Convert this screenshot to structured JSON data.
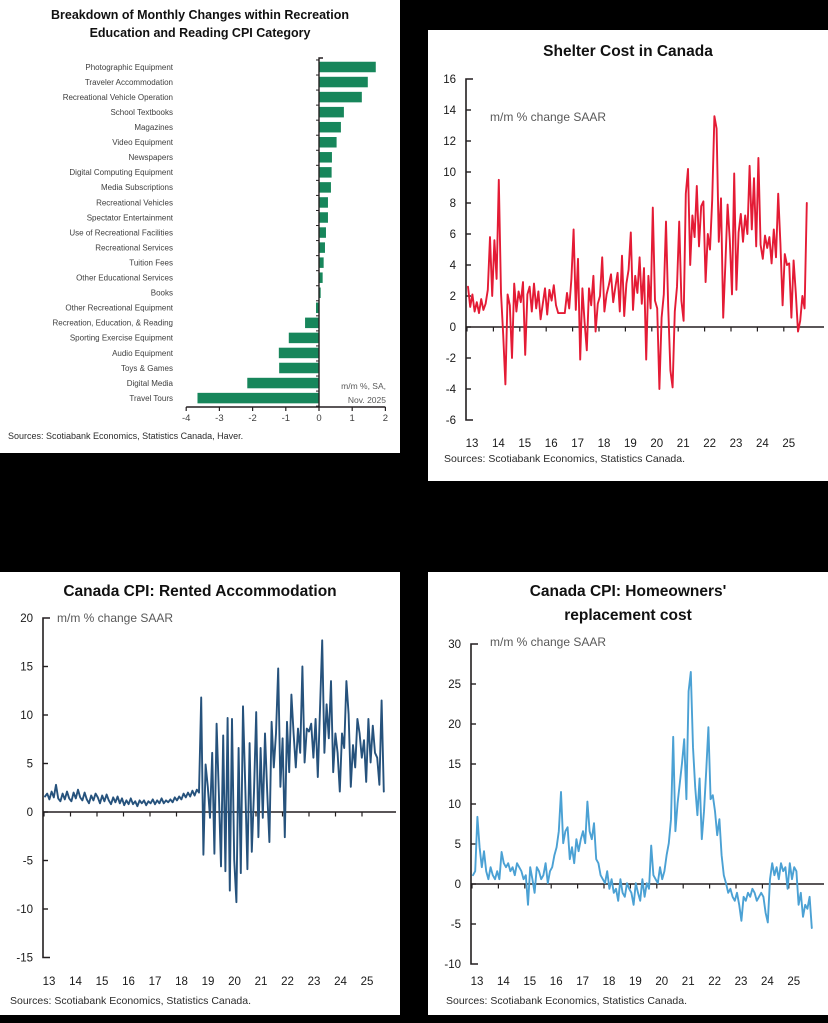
{
  "charts": [
    {
      "id": "recreation-breakdown",
      "title_line1": "Breakdown of Monthly Changes within Recreation",
      "title_line2": "Education and Reading CPI Category",
      "annotation_line1": "m/m %, SA,",
      "annotation_line2": "Nov. 2025",
      "source": "Sources: Scotiabank Economics, Statistics Canada, Haver.",
      "chart_data": {
        "type": "bar",
        "orientation": "horizontal",
        "title": "Breakdown of Monthly Changes within Recreation Education and Reading CPI Category",
        "unit_note": "m/m %, SA, Nov. 2025",
        "xlim": [
          -4,
          2
        ],
        "x_ticks": [
          -4,
          -3,
          -2,
          -1,
          0,
          1,
          2
        ],
        "bar_color": "#17865B",
        "categories": [
          "Photographic Equipment",
          "Traveler Accommodation",
          "Recreational Vehicle Operation",
          "School Textbooks",
          "Magazines",
          "Video Equipment",
          "Newspapers",
          "Digital Computing Equipment",
          "Media Subscriptions",
          "Recreational Vehicles",
          "Spectator Entertainment",
          "Use of Recreational Facilities",
          "Recreational Services",
          "Tuition Fees",
          "Other Educational Services",
          "Books",
          "Other Recreational Equipment",
          "Recreation, Education, & Reading",
          "Sporting Exercise Equipment",
          "Audio Equipment",
          "Toys & Games",
          "Digital Media",
          "Travel Tours"
        ],
        "values": [
          1.71,
          1.47,
          1.29,
          0.75,
          0.66,
          0.53,
          0.39,
          0.38,
          0.36,
          0.27,
          0.27,
          0.21,
          0.18,
          0.14,
          0.11,
          0.05,
          -0.09,
          -0.42,
          -0.91,
          -1.21,
          -1.2,
          -2.16,
          -3.66
        ]
      }
    },
    {
      "id": "shelter-cost",
      "title_line1": "Shelter Cost in Canada",
      "subtitle": "m/m % change SAAR",
      "source": "Sources: Scotiabank Economics, Statistics Canada.",
      "chart_data": {
        "type": "line",
        "title": "Shelter Cost in Canada",
        "ylabel": "m/m % change SAAR",
        "ylim": [
          -6,
          16
        ],
        "y_ticks": [
          16,
          14,
          12,
          10,
          8,
          6,
          4,
          2,
          0,
          -2,
          -4,
          -6
        ],
        "x_tick_labels": [
          "13",
          "14",
          "15",
          "16",
          "17",
          "18",
          "19",
          "20",
          "21",
          "22",
          "23",
          "24",
          "25"
        ],
        "x_unit": "monthly",
        "x_start": "2013-01",
        "x_end": "2025-11",
        "line_color": "#E41B35",
        "values": [
          2.6,
          1.3,
          2.1,
          1.0,
          1.6,
          0.9,
          1.8,
          1.1,
          1.5,
          2.4,
          5.8,
          2.0,
          5.6,
          3.1,
          9.5,
          2.2,
          -0.5,
          -3.7,
          2.1,
          1.4,
          -2.0,
          2.8,
          1.0,
          2.3,
          1.6,
          2.9,
          -1.8,
          2.1,
          2.6,
          1.0,
          2.8,
          1.2,
          2.3,
          0.5,
          1.5,
          2.5,
          0.8,
          2.4,
          1.7,
          2.7,
          1.4,
          0.9,
          0.9,
          0.9,
          0.9,
          2.2,
          1.2,
          3.1,
          6.3,
          1.1,
          4.4,
          -2.1,
          2.5,
          0.3,
          -1.5,
          2.5,
          1.4,
          3.3,
          -0.3,
          1.5,
          2.0,
          4.5,
          1.0,
          2.1,
          2.7,
          3.4,
          1.6,
          2.6,
          3.5,
          1.0,
          4.6,
          0.7,
          2.8,
          3.7,
          6.1,
          1.1,
          3.3,
          2.2,
          4.5,
          1.5,
          3.8,
          -2.1,
          3.3,
          1.2,
          7.7,
          1.7,
          1.2,
          -4.0,
          0.6,
          2.1,
          6.8,
          1.3,
          -2.8,
          -3.9,
          1.0,
          2.6,
          6.8,
          1.7,
          0.4,
          8.6,
          10.2,
          4.0,
          7.2,
          5.8,
          9.1,
          5.2,
          7.8,
          8.1,
          2.9,
          6.0,
          5.0,
          8.2,
          13.6,
          12.8,
          5.5,
          8.3,
          0.6,
          4.1,
          7.9,
          5.6,
          2.1,
          9.9,
          2.4,
          6.1,
          7.3,
          5.5,
          7.2,
          6.0,
          10.4,
          6.3,
          9.6,
          5.2,
          10.9,
          5.3,
          4.4,
          5.9,
          5.1,
          5.8,
          4.1,
          6.3,
          4.5,
          8.6,
          5.4,
          1.4,
          4.7,
          4.0,
          4.1,
          0.6,
          4.3,
          2.2,
          -0.3,
          0.4,
          2.0,
          1.2,
          8.0
        ]
      }
    },
    {
      "id": "rented-accommodation",
      "title_line1": "Canada CPI: Rented Accommodation",
      "subtitle": "m/m % change SAAR",
      "source": "Sources: Scotiabank Economics, Statistics Canada.",
      "chart_data": {
        "type": "line",
        "title": "Canada CPI: Rented Accommodation",
        "ylabel": "m/m % change SAAR",
        "ylim": [
          -15,
          20
        ],
        "y_ticks": [
          20,
          15,
          10,
          5,
          0,
          -5,
          -10,
          -15
        ],
        "x_tick_labels": [
          "13",
          "14",
          "15",
          "16",
          "17",
          "18",
          "19",
          "20",
          "21",
          "22",
          "23",
          "24",
          "25"
        ],
        "x_unit": "monthly",
        "x_start": "2013-01",
        "x_end": "2025-11",
        "line_color": "#26527C",
        "values": [
          1.6,
          1.9,
          1.3,
          2.1,
          1.5,
          2.8,
          1.4,
          1.1,
          1.9,
          1.3,
          2.1,
          1.4,
          1.1,
          2.0,
          1.4,
          2.3,
          1.5,
          1.2,
          2.0,
          1.3,
          0.9,
          1.7,
          1.2,
          1.9,
          1.5,
          0.9,
          1.7,
          1.1,
          1.8,
          1.2,
          0.8,
          1.5,
          1.0,
          1.6,
          0.9,
          1.4,
          0.7,
          1.2,
          0.8,
          1.4,
          0.8,
          1.1,
          0.6,
          1.2,
          0.9,
          1.2,
          0.7,
          1.1,
          0.9,
          1.3,
          0.8,
          1.2,
          0.9,
          1.4,
          0.9,
          1.2,
          1.0,
          1.3,
          1.0,
          1.5,
          1.2,
          1.6,
          1.3,
          1.9,
          1.5,
          2.0,
          1.6,
          2.2,
          1.7,
          2.3,
          2.0,
          11.8,
          -4.4,
          4.9,
          2.6,
          -0.6,
          6.1,
          -4.3,
          9.1,
          2.1,
          -5.6,
          7.9,
          -6.1,
          9.7,
          -8.1,
          9.6,
          -4.9,
          -9.3,
          6.6,
          -6.3,
          10.9,
          2.9,
          -5.9,
          7.1,
          -4.1,
          2.1,
          10.3,
          -2.6,
          6.6,
          -0.6,
          8.1,
          2.1,
          -3.1,
          9.3,
          4.6,
          8.1,
          14.8,
          2.6,
          7.6,
          -2.6,
          9.3,
          4.1,
          12.1,
          8.1,
          4.6,
          8.6,
          6.1,
          15.0,
          5.1,
          8.6,
          8.3,
          9.1,
          5.6,
          9.6,
          3.6,
          10.6,
          17.7,
          6.1,
          11.1,
          7.6,
          13.5,
          4.1,
          8.1,
          6.1,
          2.1,
          8.1,
          6.6,
          13.5,
          10.1,
          2.6,
          6.9,
          4.6,
          9.6,
          8.1,
          5.6,
          7.4,
          3.1,
          9.6,
          5.1,
          8.9,
          6.1,
          5.6,
          2.8,
          11.5,
          2.1
        ]
      }
    },
    {
      "id": "homeowners-replacement-cost",
      "title_line1": "Canada CPI: Homeowners'",
      "title_line2": "replacement cost",
      "subtitle": "m/m % change SAAR",
      "source": "Sources: Scotiabank Economics, Statistics Canada.",
      "chart_data": {
        "type": "line",
        "title": "Canada CPI: Homeowners' replacement cost",
        "ylabel": "m/m % change SAAR",
        "ylim": [
          -10,
          30
        ],
        "y_ticks": [
          30,
          25,
          20,
          15,
          10,
          5,
          0,
          -5,
          -10
        ],
        "x_tick_labels": [
          "13",
          "14",
          "15",
          "16",
          "17",
          "18",
          "19",
          "20",
          "21",
          "22",
          "23",
          "24",
          "25"
        ],
        "x_unit": "monthly",
        "x_start": "2013-01",
        "x_end": "2025-11",
        "line_color": "#4BA1D4",
        "values": [
          1.1,
          1.6,
          8.4,
          4.6,
          2.1,
          4.1,
          1.6,
          0.6,
          2.1,
          1.1,
          0.6,
          1.6,
          0.6,
          4.0,
          2.6,
          2.1,
          2.6,
          1.6,
          2.1,
          1.1,
          2.6,
          2.1,
          1.6,
          0.6,
          1.1,
          -2.6,
          2.1,
          0.6,
          -1.1,
          2.1,
          1.6,
          0.6,
          1.1,
          2.6,
          0.1,
          1.6,
          2.1,
          3.6,
          4.6,
          6.6,
          11.5,
          5.1,
          6.6,
          7.1,
          3.1,
          4.6,
          2.6,
          5.6,
          4.1,
          5.6,
          6.6,
          5.1,
          10.3,
          6.6,
          5.6,
          7.6,
          3.1,
          2.6,
          1.1,
          0.6,
          0.1,
          1.6,
          -0.6,
          0.6,
          -1.1,
          -0.6,
          -2.1,
          0.6,
          -1.1,
          -1.6,
          0.1,
          -0.6,
          -1.1,
          -2.6,
          0.1,
          -1.1,
          -2.1,
          0.6,
          -1.6,
          0.1,
          -0.6,
          4.8,
          1.1,
          0.6,
          0.1,
          2.1,
          0.6,
          1.6,
          3.6,
          5.1,
          8.1,
          18.4,
          6.6,
          10.1,
          12.6,
          15.1,
          18.1,
          10.6,
          24.1,
          26.5,
          17.1,
          12.1,
          8.6,
          13.2,
          5.6,
          9.1,
          14.1,
          19.6,
          10.6,
          11.1,
          9.1,
          6.1,
          8.1,
          3.6,
          1.1,
          0.1,
          -1.1,
          -0.6,
          -1.6,
          -2.1,
          -1.1,
          -2.6,
          -4.6,
          -1.6,
          -2.1,
          -1.1,
          -1.6,
          -0.6,
          -1.1,
          -2.1,
          -1.6,
          -1.1,
          -1.6,
          -3.6,
          -4.8,
          0.6,
          2.6,
          1.1,
          2.1,
          0.6,
          2.6,
          1.6,
          2.1,
          -0.6,
          2.6,
          0.6,
          2.1,
          1.6,
          -2.6,
          -1.1,
          -4.1,
          -2.6,
          -3.1,
          -1.6,
          -5.5
        ]
      }
    }
  ]
}
